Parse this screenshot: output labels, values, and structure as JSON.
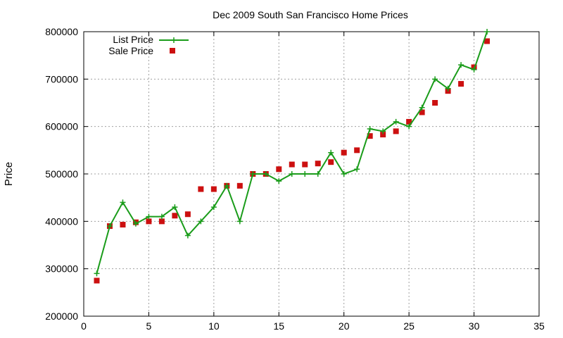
{
  "chart_data": {
    "type": "line",
    "title": "Dec 2009 South San Francisco Home Prices",
    "xlabel": "",
    "ylabel": "Price",
    "xlim": [
      0,
      35
    ],
    "ylim": [
      200000,
      800000
    ],
    "x_ticks": [
      0,
      5,
      10,
      15,
      20,
      25,
      30,
      35
    ],
    "y_ticks": [
      200000,
      300000,
      400000,
      500000,
      600000,
      700000,
      800000
    ],
    "grid": true,
    "legend_position": "top-left",
    "series": [
      {
        "name": "List Price",
        "style": "line+cross",
        "color": "#1a9c1a",
        "x": [
          1,
          2,
          3,
          4,
          5,
          6,
          7,
          8,
          9,
          10,
          11,
          12,
          13,
          14,
          15,
          16,
          17,
          18,
          19,
          20,
          21,
          22,
          23,
          24,
          25,
          26,
          27,
          28,
          29,
          30,
          31
        ],
        "values": [
          290000,
          390000,
          440000,
          395000,
          410000,
          410000,
          430000,
          370000,
          400000,
          430000,
          475000,
          400000,
          500000,
          500000,
          485000,
          500000,
          500000,
          500000,
          545000,
          500000,
          510000,
          595000,
          590000,
          610000,
          600000,
          640000,
          700000,
          680000,
          730000,
          720000,
          800000
        ]
      },
      {
        "name": "Sale Price",
        "style": "square",
        "color": "#cc1010",
        "x": [
          1,
          2,
          3,
          4,
          5,
          6,
          7,
          8,
          9,
          10,
          11,
          12,
          13,
          14,
          15,
          16,
          17,
          18,
          19,
          20,
          21,
          22,
          23,
          24,
          25,
          26,
          27,
          28,
          29,
          30,
          31
        ],
        "values": [
          275000,
          390000,
          393000,
          398000,
          400000,
          400000,
          412000,
          415000,
          468000,
          468000,
          475000,
          475000,
          500000,
          500000,
          510000,
          520000,
          520000,
          522000,
          525000,
          545000,
          550000,
          580000,
          583000,
          590000,
          610000,
          630000,
          650000,
          675000,
          690000,
          725000,
          780000
        ]
      }
    ]
  }
}
